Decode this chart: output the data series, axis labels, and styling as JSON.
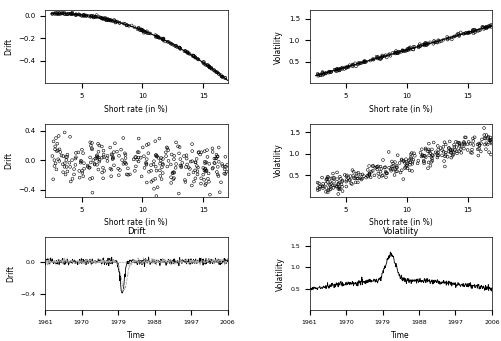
{
  "fig_width": 5.02,
  "fig_height": 3.41,
  "dpi": 100,
  "background_color": "#ffffff",
  "panel_titles": [
    "Drift",
    "Volatility"
  ],
  "row1_left": {
    "xlabel": "Short rate (in %)",
    "ylabel": "Drift",
    "xlim": [
      2,
      17
    ],
    "ylim": [
      -0.6,
      0.05
    ],
    "yticks": [
      0.0,
      -0.2,
      -0.4
    ],
    "xticks": [
      5,
      10,
      15
    ]
  },
  "row1_right": {
    "xlabel": "Short rate (in %)",
    "ylabel": "Volatility",
    "xlim": [
      2,
      17
    ],
    "ylim": [
      0.0,
      1.7
    ],
    "yticks": [
      0.5,
      1.0,
      1.5
    ],
    "xticks": [
      5,
      10,
      15
    ]
  },
  "row2_left": {
    "xlabel": "Short rate (in %)",
    "ylabel": "Drift",
    "xlim": [
      2,
      17
    ],
    "ylim": [
      -0.5,
      0.5
    ],
    "yticks": [
      -0.4,
      0.0,
      0.4
    ],
    "xticks": [
      5,
      10,
      15
    ]
  },
  "row2_right": {
    "xlabel": "Short rate (in %)",
    "ylabel": "Volatility",
    "xlim": [
      2,
      17
    ],
    "ylim": [
      0.0,
      1.7
    ],
    "yticks": [
      0.5,
      1.0,
      1.5
    ],
    "xticks": [
      5,
      10,
      15
    ]
  },
  "row3_left": {
    "xlabel": "Time",
    "ylabel": "Drift",
    "xlim": [
      1961,
      2006
    ],
    "ylim": [
      -0.6,
      0.3
    ],
    "yticks": [
      -0.4,
      0.0
    ],
    "xticks": [
      1961,
      1970,
      1979,
      1988,
      1997,
      2006
    ],
    "title": "Drift"
  },
  "row3_right": {
    "xlabel": "Time",
    "ylabel": "Volatility",
    "xlim": [
      1961,
      2006
    ],
    "ylim": [
      0.0,
      1.7
    ],
    "yticks": [
      0.5,
      1.0,
      1.5
    ],
    "xticks": [
      1961,
      1970,
      1979,
      1988,
      1997,
      2006
    ],
    "title": "Volatility"
  },
  "marker_style": "o",
  "marker_size": 2,
  "line_color_solid": "#000000",
  "line_color_dashed": "#888888",
  "scatter_color": "#000000",
  "scatter_facecolor": "none",
  "scatter_edgecolor": "#000000"
}
